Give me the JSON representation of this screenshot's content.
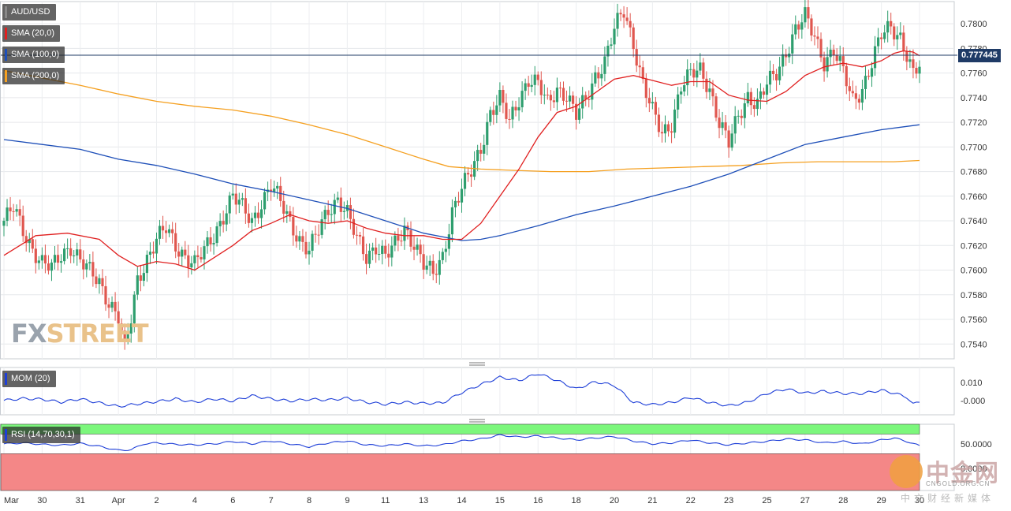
{
  "chart_data": [
    {
      "type": "candlestick",
      "pair": "AUD/USD",
      "indicators": [
        {
          "name": "SMA (20,0)",
          "color": "#e02020"
        },
        {
          "name": "SMA (100,0)",
          "color": "#1e4fb8"
        },
        {
          "name": "SMA (200,0)",
          "color": "#f5a020"
        }
      ],
      "current_price": "0.777445",
      "ylim": [
        0.7528,
        0.7818
      ],
      "y_ticks": [
        "0.7800",
        "0.7780",
        "0.7760",
        "0.7740",
        "0.7720",
        "0.7700",
        "0.7680",
        "0.7660",
        "0.7640",
        "0.7620",
        "0.7600",
        "0.7580",
        "0.7560",
        "0.7540"
      ],
      "x_ticks": [
        {
          "label": "Mar",
          "i": 0
        },
        {
          "label": "30",
          "i": 12
        },
        {
          "label": "31",
          "i": 24
        },
        {
          "label": "Apr",
          "i": 36
        },
        {
          "label": "2",
          "i": 48
        },
        {
          "label": "4",
          "i": 60
        },
        {
          "label": "6",
          "i": 72
        },
        {
          "label": "7",
          "i": 84
        },
        {
          "label": "8",
          "i": 96
        },
        {
          "label": "9",
          "i": 108
        },
        {
          "label": "11",
          "i": 120
        },
        {
          "label": "13",
          "i": 132
        },
        {
          "label": "14",
          "i": 144
        },
        {
          "label": "15",
          "i": 156
        },
        {
          "label": "16",
          "i": 168
        },
        {
          "label": "18",
          "i": 180
        },
        {
          "label": "20",
          "i": 192
        },
        {
          "label": "21",
          "i": 204
        },
        {
          "label": "22",
          "i": 216
        },
        {
          "label": "23",
          "i": 228
        },
        {
          "label": "25",
          "i": 240
        },
        {
          "label": "27",
          "i": 252
        },
        {
          "label": "28",
          "i": 264
        },
        {
          "label": "29",
          "i": 276
        },
        {
          "label": "30",
          "i": 288
        }
      ],
      "close_path": [
        [
          0,
          0.764
        ],
        [
          3,
          0.765
        ],
        [
          6,
          0.7632
        ],
        [
          9,
          0.7618
        ],
        [
          12,
          0.7606
        ],
        [
          15,
          0.7601
        ],
        [
          18,
          0.7612
        ],
        [
          21,
          0.762
        ],
        [
          24,
          0.7608
        ],
        [
          27,
          0.7598
        ],
        [
          30,
          0.759
        ],
        [
          33,
          0.7575
        ],
        [
          36,
          0.7562
        ],
        [
          38,
          0.7535
        ],
        [
          40,
          0.756
        ],
        [
          42,
          0.7592
        ],
        [
          45,
          0.761
        ],
        [
          48,
          0.7625
        ],
        [
          51,
          0.7633
        ],
        [
          54,
          0.762
        ],
        [
          57,
          0.7612
        ],
        [
          60,
          0.7605
        ],
        [
          63,
          0.7615
        ],
        [
          66,
          0.7628
        ],
        [
          69,
          0.7645
        ],
        [
          72,
          0.766
        ],
        [
          75,
          0.765
        ],
        [
          78,
          0.764
        ],
        [
          81,
          0.7655
        ],
        [
          84,
          0.7668
        ],
        [
          87,
          0.7655
        ],
        [
          90,
          0.764
        ],
        [
          93,
          0.7625
        ],
        [
          96,
          0.7615
        ],
        [
          99,
          0.7632
        ],
        [
          102,
          0.765
        ],
        [
          105,
          0.7658
        ],
        [
          108,
          0.7645
        ],
        [
          111,
          0.7625
        ],
        [
          114,
          0.7612
        ],
        [
          117,
          0.762
        ],
        [
          120,
          0.761
        ],
        [
          123,
          0.762
        ],
        [
          126,
          0.7635
        ],
        [
          129,
          0.7622
        ],
        [
          132,
          0.7604
        ],
        [
          135,
          0.7596
        ],
        [
          138,
          0.7612
        ],
        [
          141,
          0.7648
        ],
        [
          144,
          0.7665
        ],
        [
          147,
          0.768
        ],
        [
          150,
          0.77
        ],
        [
          153,
          0.7728
        ],
        [
          156,
          0.7738
        ],
        [
          159,
          0.772
        ],
        [
          162,
          0.774
        ],
        [
          165,
          0.7755
        ],
        [
          168,
          0.775
        ],
        [
          171,
          0.7735
        ],
        [
          174,
          0.7748
        ],
        [
          177,
          0.7742
        ],
        [
          180,
          0.7725
        ],
        [
          183,
          0.7738
        ],
        [
          186,
          0.7758
        ],
        [
          189,
          0.777
        ],
        [
          192,
          0.7795
        ],
        [
          195,
          0.781
        ],
        [
          198,
          0.7785
        ],
        [
          201,
          0.7752
        ],
        [
          204,
          0.7728
        ],
        [
          207,
          0.771
        ],
        [
          210,
          0.772
        ],
        [
          213,
          0.775
        ],
        [
          216,
          0.7758
        ],
        [
          219,
          0.7762
        ],
        [
          222,
          0.7748
        ],
        [
          225,
          0.772
        ],
        [
          228,
          0.7702
        ],
        [
          231,
          0.7725
        ],
        [
          234,
          0.7742
        ],
        [
          237,
          0.7735
        ],
        [
          240,
          0.775
        ],
        [
          243,
          0.776
        ],
        [
          246,
          0.7778
        ],
        [
          249,
          0.7795
        ],
        [
          252,
          0.7805
        ],
        [
          255,
          0.779
        ],
        [
          258,
          0.777
        ],
        [
          261,
          0.7778
        ],
        [
          264,
          0.776
        ],
        [
          267,
          0.7738
        ],
        [
          270,
          0.7748
        ],
        [
          273,
          0.7768
        ],
        [
          276,
          0.779
        ],
        [
          279,
          0.7798
        ],
        [
          282,
          0.779
        ],
        [
          284,
          0.7775
        ],
        [
          286,
          0.7758
        ],
        [
          288,
          0.7765
        ]
      ],
      "sma20": [
        [
          0,
          0.7612
        ],
        [
          10,
          0.7628
        ],
        [
          20,
          0.763
        ],
        [
          30,
          0.7625
        ],
        [
          36,
          0.7612
        ],
        [
          42,
          0.7603
        ],
        [
          48,
          0.7607
        ],
        [
          54,
          0.7605
        ],
        [
          60,
          0.76
        ],
        [
          66,
          0.761
        ],
        [
          72,
          0.762
        ],
        [
          78,
          0.7632
        ],
        [
          84,
          0.7638
        ],
        [
          90,
          0.7645
        ],
        [
          96,
          0.764
        ],
        [
          102,
          0.7638
        ],
        [
          108,
          0.764
        ],
        [
          114,
          0.7634
        ],
        [
          120,
          0.763
        ],
        [
          126,
          0.7628
        ],
        [
          132,
          0.7628
        ],
        [
          138,
          0.7625
        ],
        [
          144,
          0.7625
        ],
        [
          150,
          0.7638
        ],
        [
          156,
          0.766
        ],
        [
          162,
          0.7682
        ],
        [
          168,
          0.7708
        ],
        [
          174,
          0.7728
        ],
        [
          180,
          0.7733
        ],
        [
          186,
          0.7744
        ],
        [
          192,
          0.7755
        ],
        [
          198,
          0.7758
        ],
        [
          204,
          0.7754
        ],
        [
          210,
          0.775
        ],
        [
          216,
          0.7753
        ],
        [
          222,
          0.7753
        ],
        [
          228,
          0.7742
        ],
        [
          234,
          0.7738
        ],
        [
          240,
          0.7737
        ],
        [
          246,
          0.7745
        ],
        [
          252,
          0.7758
        ],
        [
          258,
          0.7765
        ],
        [
          264,
          0.7768
        ],
        [
          270,
          0.7765
        ],
        [
          276,
          0.777
        ],
        [
          280,
          0.7776
        ],
        [
          283,
          0.7778
        ],
        [
          286,
          0.7777
        ],
        [
          288,
          0.7774
        ]
      ],
      "sma100": [
        [
          0,
          0.7706
        ],
        [
          12,
          0.7702
        ],
        [
          24,
          0.7698
        ],
        [
          36,
          0.769
        ],
        [
          48,
          0.7685
        ],
        [
          60,
          0.7678
        ],
        [
          72,
          0.767
        ],
        [
          84,
          0.7664
        ],
        [
          96,
          0.7657
        ],
        [
          108,
          0.765
        ],
        [
          120,
          0.764
        ],
        [
          132,
          0.763
        ],
        [
          144,
          0.7624
        ],
        [
          150,
          0.7625
        ],
        [
          156,
          0.7628
        ],
        [
          168,
          0.7636
        ],
        [
          180,
          0.7645
        ],
        [
          192,
          0.7652
        ],
        [
          204,
          0.766
        ],
        [
          216,
          0.7668
        ],
        [
          228,
          0.7678
        ],
        [
          240,
          0.769
        ],
        [
          252,
          0.7702
        ],
        [
          264,
          0.7708
        ],
        [
          276,
          0.7714
        ],
        [
          288,
          0.7718
        ]
      ],
      "sma200": [
        [
          0,
          0.7762
        ],
        [
          12,
          0.7756
        ],
        [
          24,
          0.775
        ],
        [
          36,
          0.7743
        ],
        [
          48,
          0.7737
        ],
        [
          60,
          0.7733
        ],
        [
          72,
          0.773
        ],
        [
          84,
          0.7725
        ],
        [
          96,
          0.7718
        ],
        [
          108,
          0.771
        ],
        [
          120,
          0.77
        ],
        [
          132,
          0.769
        ],
        [
          140,
          0.7684
        ],
        [
          150,
          0.7682
        ],
        [
          160,
          0.7681
        ],
        [
          172,
          0.768
        ],
        [
          184,
          0.768
        ],
        [
          196,
          0.7682
        ],
        [
          208,
          0.7683
        ],
        [
          220,
          0.7684
        ],
        [
          232,
          0.7685
        ],
        [
          244,
          0.7687
        ],
        [
          256,
          0.7688
        ],
        [
          268,
          0.7688
        ],
        [
          280,
          0.7688
        ],
        [
          288,
          0.7689
        ]
      ]
    },
    {
      "type": "line",
      "name": "MOM (20)",
      "color": "#1e3fd8",
      "y_ticks": [
        "0.010",
        "-0.000"
      ],
      "ylim": [
        -0.0078,
        0.0184
      ],
      "points": [
        [
          0,
          0.0002
        ],
        [
          6,
          0.0012
        ],
        [
          12,
          0.0008
        ],
        [
          18,
          -0.0008
        ],
        [
          24,
          0.001
        ],
        [
          30,
          -0.0012
        ],
        [
          36,
          -0.0032
        ],
        [
          42,
          -0.0018
        ],
        [
          48,
          -0.0005
        ],
        [
          54,
          0.001
        ],
        [
          60,
          -0.0008
        ],
        [
          66,
          0.001
        ],
        [
          72,
          -0.0002
        ],
        [
          78,
          0.0028
        ],
        [
          84,
          0.001
        ],
        [
          90,
          -0.0002
        ],
        [
          96,
          0.0008
        ],
        [
          102,
          0.0004
        ],
        [
          108,
          0.0014
        ],
        [
          114,
          -0.0008
        ],
        [
          120,
          -0.002
        ],
        [
          126,
          -0.0008
        ],
        [
          132,
          -0.0015
        ],
        [
          138,
          -0.0012
        ],
        [
          144,
          0.0045
        ],
        [
          150,
          0.009
        ],
        [
          156,
          0.013
        ],
        [
          162,
          0.0112
        ],
        [
          168,
          0.015
        ],
        [
          174,
          0.0112
        ],
        [
          180,
          0.0065
        ],
        [
          186,
          0.0105
        ],
        [
          192,
          0.0085
        ],
        [
          198,
          -0.001
        ],
        [
          204,
          -0.0022
        ],
        [
          210,
          -0.001
        ],
        [
          216,
          0.0018
        ],
        [
          222,
          -0.001
        ],
        [
          228,
          -0.0028
        ],
        [
          234,
          -0.0008
        ],
        [
          240,
          0.004
        ],
        [
          246,
          0.0065
        ],
        [
          252,
          0.0042
        ],
        [
          258,
          0.0052
        ],
        [
          264,
          0.004
        ],
        [
          270,
          0.004
        ],
        [
          276,
          0.0058
        ],
        [
          280,
          0.0042
        ],
        [
          284,
          0.002
        ],
        [
          286,
          -0.002
        ],
        [
          288,
          -0.0005
        ]
      ]
    },
    {
      "type": "line",
      "name": "RSI (14,70,30,1)",
      "color": "#1e3fd8",
      "y_ticks": [
        "50.0000",
        "0.0000"
      ],
      "ylim": [
        -45,
        90
      ],
      "overbought": 70,
      "oversold": 30,
      "points": [
        [
          0,
          50
        ],
        [
          6,
          52
        ],
        [
          12,
          49
        ],
        [
          18,
          47
        ],
        [
          24,
          51
        ],
        [
          30,
          45
        ],
        [
          36,
          37
        ],
        [
          40,
          38
        ],
        [
          44,
          50
        ],
        [
          48,
          52
        ],
        [
          54,
          49
        ],
        [
          60,
          48
        ],
        [
          66,
          50
        ],
        [
          72,
          55
        ],
        [
          78,
          50
        ],
        [
          84,
          56
        ],
        [
          90,
          50
        ],
        [
          96,
          44
        ],
        [
          102,
          52
        ],
        [
          108,
          56
        ],
        [
          114,
          48
        ],
        [
          120,
          46
        ],
        [
          126,
          50
        ],
        [
          132,
          46
        ],
        [
          138,
          48
        ],
        [
          144,
          56
        ],
        [
          150,
          60
        ],
        [
          156,
          68
        ],
        [
          162,
          64
        ],
        [
          168,
          66
        ],
        [
          174,
          62
        ],
        [
          180,
          58
        ],
        [
          186,
          62
        ],
        [
          192,
          65
        ],
        [
          198,
          56
        ],
        [
          204,
          50
        ],
        [
          210,
          52
        ],
        [
          216,
          58
        ],
        [
          222,
          52
        ],
        [
          228,
          48
        ],
        [
          234,
          52
        ],
        [
          240,
          55
        ],
        [
          246,
          60
        ],
        [
          252,
          58
        ],
        [
          258,
          52
        ],
        [
          264,
          55
        ],
        [
          270,
          50
        ],
        [
          276,
          58
        ],
        [
          280,
          62
        ],
        [
          284,
          55
        ],
        [
          288,
          46
        ]
      ]
    }
  ],
  "logo": {
    "part1": "FX",
    "part2": "STREET"
  },
  "watermark": {
    "big": "中金网",
    "small": "CNGOLD.ORG.CN",
    "cn": "中文财经新媒体"
  }
}
